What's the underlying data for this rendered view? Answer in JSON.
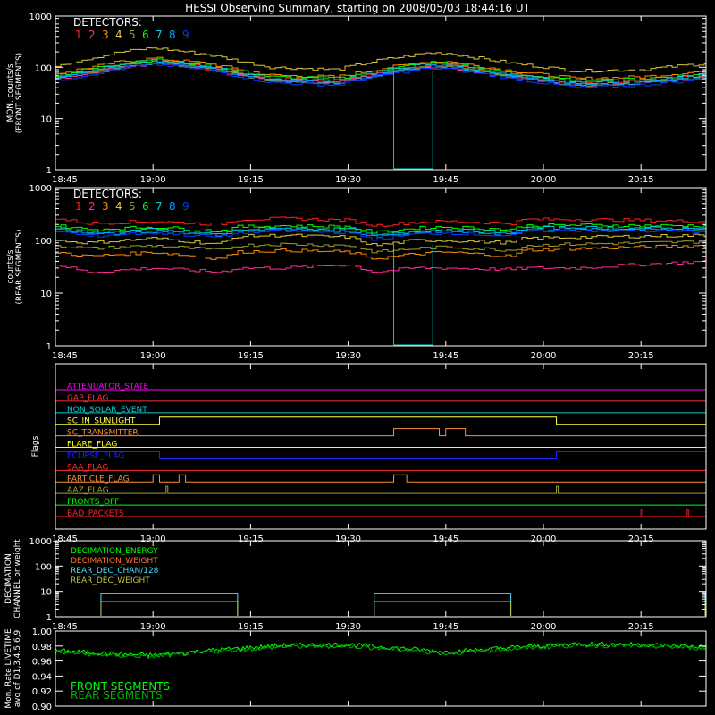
{
  "title": "HESSI Observing Summary, starting on 2008/05/03 18:44:16 UT",
  "colors": {
    "background": "#000000",
    "axes": "#ffffff",
    "detectors": [
      "#ff1e1e",
      "#ff2d96",
      "#ff8c00",
      "#d9c83a",
      "#9c9c2a",
      "#00ff00",
      "#00d2d2",
      "#00a0ff",
      "#0040ff"
    ],
    "flags": {
      "ATTENUATOR_STATE": "#ff00ff",
      "GAP_FLAG": "#ff3030",
      "NON_SOLAR_EVENT": "#00d0d0",
      "SC_IN_SUNLIGHT": "#ffff40",
      "SC_TRANSMITTER": "#ff9040",
      "FLARE_FLAG": "#ffff00",
      "ECLIPSE_FLAG": "#2020ff",
      "SAA_FLAG": "#ff3030",
      "PARTICLE_FLAG": "#ff9040",
      "AAZ_FLAG": "#a0a040",
      "FRONTS_OFF": "#00ff00",
      "BAD_PACKETS": "#ff2020"
    },
    "decimation": [
      "#00ff00",
      "#ff7030",
      "#40e0ff",
      "#c0c040"
    ],
    "livetime": [
      "#00ff00",
      "#00b000"
    ]
  },
  "time_axis": {
    "start": "18:45",
    "end": "20:25",
    "ticks": [
      "18:45",
      "19:00",
      "19:15",
      "19:30",
      "19:45",
      "20:00",
      "20:15"
    ]
  },
  "chart_data": [
    {
      "type": "line",
      "panel": "front",
      "ylabel": "MON. counts/s\n(FRONT SEGMENTS)",
      "yscale": "log",
      "ylim": [
        1,
        1000
      ],
      "yticks": [
        "1",
        "10",
        "100",
        "1000"
      ],
      "legend_title": "DETECTORS:",
      "legend_labels": [
        "1",
        "2",
        "3",
        "4",
        "5",
        "6",
        "7",
        "8",
        "9"
      ],
      "grid": false,
      "x": [
        "18:45",
        "18:55",
        "19:00",
        "19:08",
        "19:18",
        "19:28",
        "19:35",
        "19:42",
        "19:45",
        "19:55",
        "20:05",
        "20:15",
        "20:25"
      ],
      "series": [
        {
          "values": [
            65,
            110,
            130,
            100,
            60,
            55,
            80,
            110,
            110,
            70,
            50,
            55,
            70
          ]
        },
        {
          "values": [
            60,
            100,
            120,
            95,
            55,
            50,
            75,
            100,
            100,
            65,
            45,
            50,
            65
          ]
        },
        {
          "values": [
            75,
            130,
            150,
            120,
            70,
            65,
            95,
            130,
            130,
            85,
            60,
            65,
            85
          ]
        },
        {
          "values": [
            110,
            200,
            240,
            180,
            100,
            90,
            140,
            190,
            190,
            120,
            85,
            90,
            120
          ]
        },
        {
          "values": [
            60,
            105,
            125,
            95,
            55,
            50,
            75,
            105,
            105,
            65,
            45,
            50,
            65
          ]
        },
        {
          "values": [
            70,
            120,
            140,
            110,
            65,
            60,
            90,
            120,
            120,
            75,
            55,
            60,
            75
          ]
        },
        {
          "values": [
            65,
            115,
            135,
            105,
            60,
            55,
            85,
            115,
            115,
            70,
            50,
            55,
            70
          ]
        },
        {
          "values": [
            60,
            105,
            125,
            95,
            55,
            50,
            75,
            105,
            105,
            65,
            45,
            50,
            65
          ]
        },
        {
          "values": [
            55,
            95,
            115,
            90,
            50,
            45,
            70,
            95,
            95,
            60,
            40,
            45,
            60
          ]
        }
      ]
    },
    {
      "type": "line",
      "panel": "rear",
      "ylabel": "counts/s\n(REAR SEGMENTS)",
      "yscale": "log",
      "ylim": [
        1,
        1000
      ],
      "yticks": [
        "1",
        "10",
        "100",
        "1000"
      ],
      "legend_title": "DETECTORS:",
      "legend_labels": [
        "1",
        "2",
        "3",
        "4",
        "5",
        "6",
        "7",
        "8",
        "9"
      ],
      "grid": false,
      "x": [
        "18:45",
        "18:50",
        "19:00",
        "19:10",
        "19:13",
        "19:20",
        "19:30",
        "19:34",
        "19:40",
        "19:45",
        "19:55",
        "19:57",
        "20:05",
        "20:15",
        "20:25"
      ],
      "series": [
        {
          "values": [
            260,
            210,
            230,
            200,
            250,
            260,
            240,
            190,
            220,
            230,
            210,
            250,
            250,
            240,
            230
          ]
        },
        {
          "values": [
            35,
            25,
            30,
            25,
            30,
            30,
            35,
            25,
            30,
            30,
            28,
            30,
            30,
            35,
            40
          ]
        },
        {
          "values": [
            60,
            50,
            60,
            45,
            60,
            65,
            60,
            45,
            55,
            60,
            50,
            65,
            70,
            75,
            80
          ]
        },
        {
          "values": [
            100,
            90,
            110,
            85,
            120,
            125,
            115,
            80,
            100,
            100,
            90,
            110,
            115,
            120,
            125
          ]
        },
        {
          "values": [
            80,
            70,
            80,
            65,
            80,
            85,
            80,
            60,
            70,
            75,
            65,
            80,
            85,
            90,
            95
          ]
        },
        {
          "values": [
            190,
            160,
            180,
            150,
            180,
            190,
            180,
            140,
            170,
            180,
            160,
            190,
            195,
            190,
            190
          ]
        },
        {
          "values": [
            170,
            140,
            160,
            130,
            160,
            170,
            160,
            120,
            150,
            160,
            140,
            170,
            175,
            170,
            170
          ]
        },
        {
          "values": [
            160,
            130,
            150,
            125,
            150,
            160,
            150,
            115,
            140,
            150,
            130,
            160,
            165,
            160,
            160
          ]
        },
        {
          "values": [
            150,
            120,
            140,
            115,
            140,
            150,
            140,
            105,
            130,
            140,
            120,
            150,
            155,
            150,
            150
          ]
        }
      ]
    },
    {
      "type": "line",
      "panel": "flags",
      "ylabel": "Flags",
      "flags": [
        {
          "name": "ATTENUATOR_STATE",
          "on": []
        },
        {
          "name": "GAP_FLAG",
          "on": []
        },
        {
          "name": "NON_SOLAR_EVENT",
          "on": []
        },
        {
          "name": "SC_IN_SUNLIGHT",
          "on": [
            [
              "19:01",
              "20:02"
            ]
          ]
        },
        {
          "name": "SC_TRANSMITTER",
          "on": [
            [
              "19:37",
              "19:44"
            ],
            [
              "19:45",
              "19:48"
            ]
          ]
        },
        {
          "name": "FLARE_FLAG",
          "on": []
        },
        {
          "name": "ECLIPSE_FLAG",
          "on": [
            [
              "18:45",
              "19:01"
            ],
            [
              "20:02",
              "20:25"
            ]
          ]
        },
        {
          "name": "SAA_FLAG",
          "on": []
        },
        {
          "name": "PARTICLE_FLAG",
          "on": [
            [
              "19:00",
              "19:01"
            ],
            [
              "19:04",
              "19:05"
            ],
            [
              "19:37",
              "19:39"
            ]
          ]
        },
        {
          "name": "AAZ_FLAG",
          "on": [
            [
              "19:02",
              "19:02"
            ],
            [
              "20:02",
              "20:02"
            ]
          ]
        },
        {
          "name": "FRONTS_OFF",
          "on": []
        },
        {
          "name": "BAD_PACKETS",
          "on": [
            [
              "20:15",
              "20:15"
            ],
            [
              "20:22",
              "20:22"
            ]
          ]
        }
      ]
    },
    {
      "type": "line",
      "panel": "decimation",
      "ylabel": "DECIMATION\nCHANNEL or weight",
      "yscale": "log",
      "ylim": [
        1,
        1000
      ],
      "yticks": [
        "1",
        "10",
        "100",
        "1000"
      ],
      "series": [
        {
          "name": "DECIMATION_ENERGY",
          "values": []
        },
        {
          "name": "DECIMATION_WEIGHT",
          "values": []
        },
        {
          "name": "REAR_DEC_CHAN/128",
          "segments": [
            [
              "18:52",
              "19:13",
              8
            ],
            [
              "19:34",
              "19:55",
              8
            ],
            [
              "20:25",
              "20:25",
              8
            ]
          ]
        },
        {
          "name": "REAR_DEC_WEIGHT",
          "segments": [
            [
              "18:52",
              "19:13",
              4
            ],
            [
              "19:34",
              "19:55",
              4
            ],
            [
              "20:25",
              "20:25",
              4
            ]
          ]
        }
      ]
    },
    {
      "type": "line",
      "panel": "livetime",
      "ylabel": "Mon. Rate LIVETIME\navg of D1,3,4,5,6,9",
      "ylim": [
        0.9,
        1.0
      ],
      "yticks": [
        "0.90",
        "0.92",
        "0.94",
        "0.96",
        "0.98",
        "1.00"
      ],
      "x": [
        "18:45",
        "18:55",
        "19:00",
        "19:10",
        "19:20",
        "19:30",
        "19:40",
        "19:45",
        "19:55",
        "20:05",
        "20:15",
        "20:25"
      ],
      "series": [
        {
          "name": "FRONT SEGMENTS",
          "values": [
            0.974,
            0.969,
            0.968,
            0.975,
            0.981,
            0.982,
            0.976,
            0.972,
            0.978,
            0.983,
            0.982,
            0.979
          ]
        },
        {
          "name": "REAR SEGMENTS",
          "values": [
            0.972,
            0.967,
            0.966,
            0.973,
            0.979,
            0.98,
            0.974,
            0.97,
            0.976,
            0.981,
            0.98,
            0.977
          ]
        }
      ]
    }
  ]
}
